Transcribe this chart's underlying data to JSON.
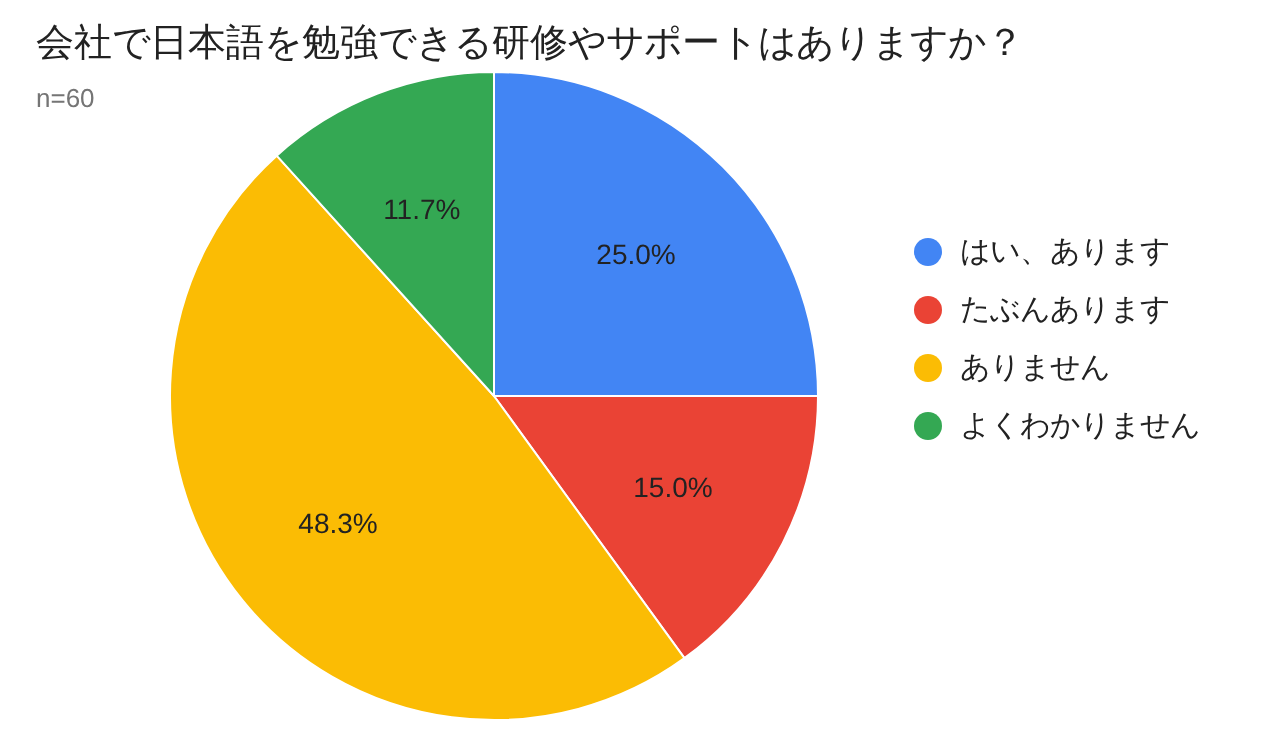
{
  "chart_data": {
    "type": "pie",
    "title": "会社で日本語を勉強できる研修やサポートはありますか？",
    "subtitle": "n=60",
    "categories": [
      "はい、あります",
      "たぶんあります",
      "ありません",
      "よくわかりません"
    ],
    "values": [
      25.0,
      15.0,
      48.3,
      11.7
    ],
    "colors": [
      "#4285f4",
      "#ea4335",
      "#fbbc04",
      "#34a853"
    ],
    "value_labels": [
      "25.0%",
      "15.0%",
      "48.3%",
      "11.7%"
    ],
    "legend": "right"
  }
}
